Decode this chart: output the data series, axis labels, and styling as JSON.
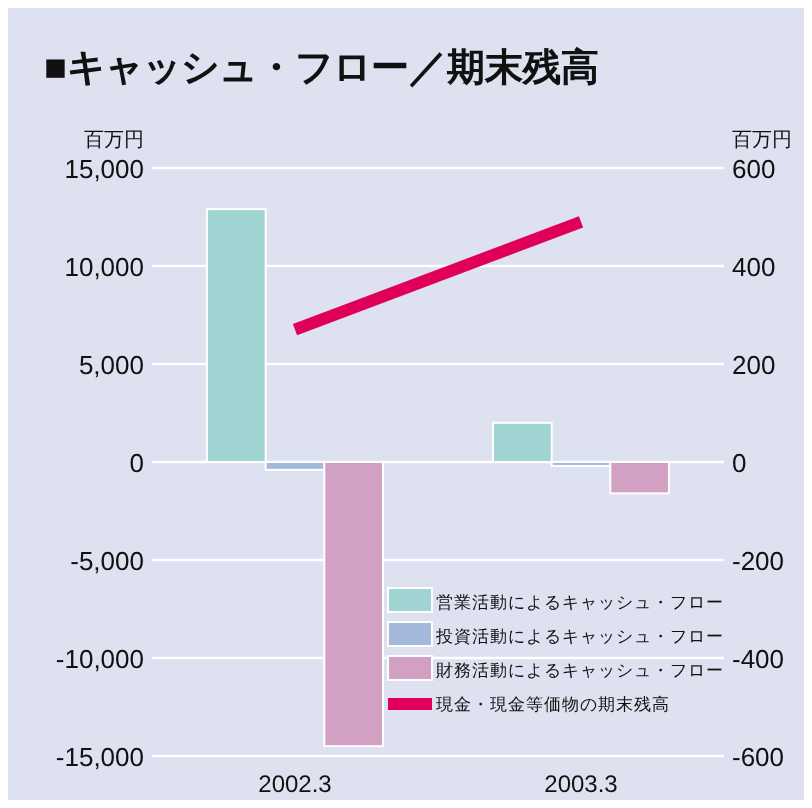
{
  "chart_data": {
    "type": "bar",
    "title": "■キャッシュ・フロー／期末残高",
    "ylabel": "百万円",
    "y2label": "百万円",
    "categories": [
      "2002.3",
      "2003.3"
    ],
    "series": [
      {
        "name": "営業活動によるキャッシュ・フロー",
        "color": "#a0d4d2",
        "values": [
          12900,
          2000
        ]
      },
      {
        "name": "投資活動によるキャッシュ・フロー",
        "color": "#a4b8dc",
        "values": [
          -400,
          -200
        ]
      },
      {
        "name": "財務活動によるキャッシュ・フロー",
        "color": "#d2a0c2",
        "values": [
          -14500,
          -1600
        ]
      },
      {
        "name": "現金・現金等価物の期末残高",
        "type": "line",
        "axis": "y2",
        "color": "#e0005a",
        "values": [
          270,
          490
        ]
      }
    ],
    "ylim": [
      -15000,
      15000
    ],
    "yticks": [
      {
        "value": -15000,
        "label": "-15,000"
      },
      {
        "value": -10000,
        "label": "-10,000"
      },
      {
        "value": -5000,
        "label": "-5,000"
      },
      0,
      {
        "value": 5000,
        "label": "5,000"
      },
      {
        "value": 10000,
        "label": "10,000"
      },
      {
        "value": 15000,
        "label": "15,000"
      }
    ],
    "y2lim": [
      -600,
      600
    ],
    "y2ticks": [
      -600,
      -400,
      -200,
      0,
      200,
      400,
      600
    ],
    "grid": "y",
    "legend": "bottom right"
  }
}
